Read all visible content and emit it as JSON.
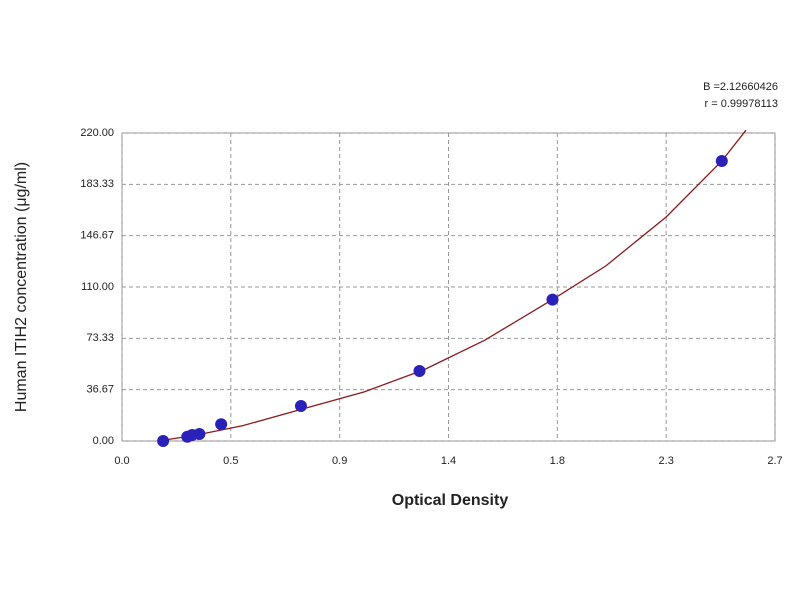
{
  "chart_data": {
    "type": "scatter",
    "xlabel": "Optical Density",
    "ylabel": "Human ITIH2 concentration (μg/ml)",
    "annotations": [
      "B =2.12660426",
      "r = 0.99978113"
    ],
    "xlim": [
      0,
      2.7
    ],
    "ylim": [
      0,
      220
    ],
    "xticks": [
      {
        "value": 0,
        "label": "0.0"
      },
      {
        "value": 0.45,
        "label": "0.5"
      },
      0.9,
      {
        "value": 1.35,
        "label": "1.4"
      },
      1.8,
      {
        "value": 2.25,
        "label": "2.3"
      },
      2.7
    ],
    "yticks": [
      {
        "value": 0,
        "label": "0.00"
      },
      36.67,
      73.33,
      {
        "value": 110,
        "label": "110.00"
      },
      146.67,
      183.33,
      {
        "value": 220,
        "label": "220.00"
      }
    ],
    "grid": true,
    "points": {
      "color": "#2a22b8",
      "x": [
        0.17,
        0.27,
        0.29,
        0.32,
        0.41,
        0.74,
        1.23,
        1.78,
        2.48
      ],
      "y": [
        0,
        3,
        4.3,
        5,
        12,
        25,
        50,
        101,
        200
      ]
    },
    "curve": {
      "color": "#8b1a1a",
      "x": [
        0.15,
        0.3,
        0.5,
        0.75,
        1.0,
        1.25,
        1.5,
        1.78,
        2.0,
        2.25,
        2.48,
        2.58
      ],
      "y": [
        0,
        4,
        11,
        23,
        35,
        51,
        72,
        101,
        125,
        160,
        200,
        222
      ]
    }
  }
}
